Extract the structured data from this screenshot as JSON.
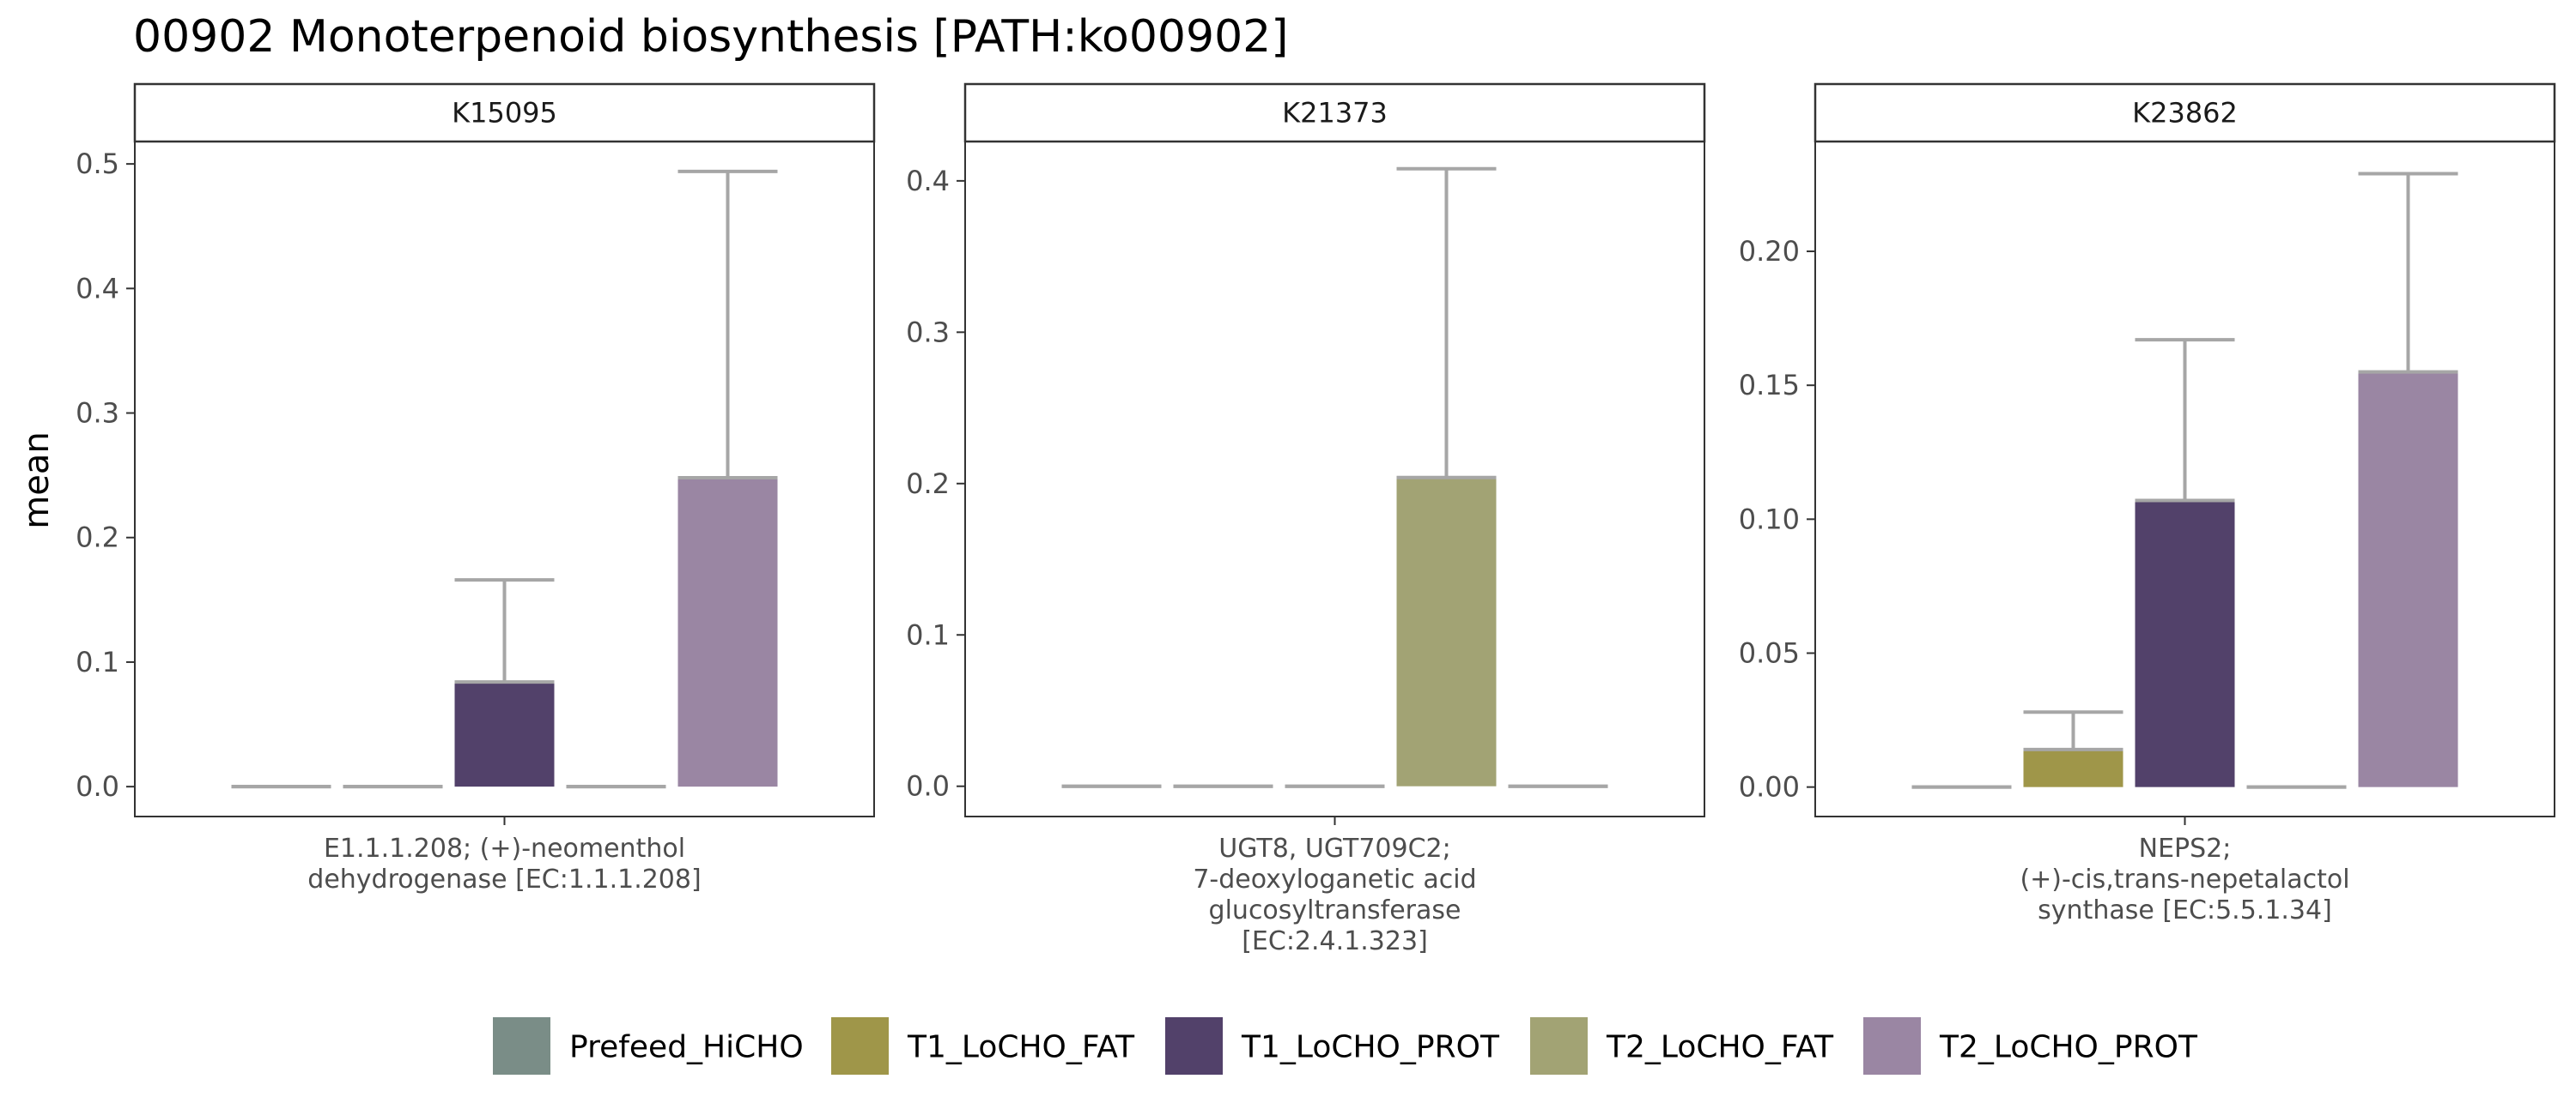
{
  "chart_data": {
    "type": "bar",
    "title": "00902 Monoterpenoid biosynthesis [PATH:ko00902]",
    "ylabel": "mean",
    "groups": [
      "Prefeed_HiCHO",
      "T1_LoCHO_FAT",
      "T1_LoCHO_PROT",
      "T2_LoCHO_FAT",
      "T2_LoCHO_PROT"
    ],
    "colors": {
      "Prefeed_HiCHO": "#7a8d87",
      "T1_LoCHO_FAT": "#9f9649",
      "T1_LoCHO_PROT": "#52416a",
      "T2_LoCHO_FAT": "#a2a374",
      "T2_LoCHO_PROT": "#9a86a3"
    },
    "errorbar_color": "#a6a6a6",
    "legend_position": "bottom",
    "panels": [
      {
        "strip": "K15095",
        "category_lines": [
          "E1.1.1.208; (+)-neomenthol",
          "dehydrogenase [EC:1.1.1.208]"
        ],
        "ylim": [
          -0.024,
          0.518
        ],
        "yticks": [
          0.0,
          0.1,
          0.2,
          0.3,
          0.4,
          0.5
        ],
        "tick_labels": [
          "0.0",
          "0.1",
          "0.2",
          "0.3",
          "0.4",
          "0.5"
        ],
        "series": [
          {
            "name": "Prefeed_HiCHO",
            "value": 0.0,
            "upper": 0.0
          },
          {
            "name": "T1_LoCHO_FAT",
            "value": 0.0,
            "upper": 0.0
          },
          {
            "name": "T1_LoCHO_PROT",
            "value": 0.084,
            "upper": 0.166
          },
          {
            "name": "T2_LoCHO_FAT",
            "value": 0.0,
            "upper": 0.0
          },
          {
            "name": "T2_LoCHO_PROT",
            "value": 0.248,
            "upper": 0.494
          }
        ]
      },
      {
        "strip": "K21373",
        "category_lines": [
          "UGT8, UGT709C2;",
          "7-deoxyloganetic acid",
          "glucosyltransferase",
          "[EC:2.4.1.323]"
        ],
        "ylim": [
          -0.02,
          0.426
        ],
        "yticks": [
          0.0,
          0.1,
          0.2,
          0.3,
          0.4
        ],
        "tick_labels": [
          "0.0",
          "0.1",
          "0.2",
          "0.3",
          "0.4"
        ],
        "series": [
          {
            "name": "Prefeed_HiCHO",
            "value": 0.0,
            "upper": 0.0
          },
          {
            "name": "T1_LoCHO_FAT",
            "value": 0.0,
            "upper": 0.0
          },
          {
            "name": "T1_LoCHO_PROT",
            "value": 0.0,
            "upper": 0.0
          },
          {
            "name": "T2_LoCHO_FAT",
            "value": 0.204,
            "upper": 0.408
          },
          {
            "name": "T2_LoCHO_PROT",
            "value": 0.0,
            "upper": 0.0
          }
        ]
      },
      {
        "strip": "K23862",
        "category_lines": [
          "NEPS2;",
          "(+)-cis,trans-nepetalactol",
          "synthase [EC:5.5.1.34]"
        ],
        "ylim": [
          -0.011,
          0.241
        ],
        "yticks": [
          0.0,
          0.05,
          0.1,
          0.15,
          0.2
        ],
        "tick_labels": [
          "0.00",
          "0.05",
          "0.10",
          "0.15",
          "0.20"
        ],
        "series": [
          {
            "name": "Prefeed_HiCHO",
            "value": 0.0,
            "upper": 0.0
          },
          {
            "name": "T1_LoCHO_FAT",
            "value": 0.014,
            "upper": 0.028
          },
          {
            "name": "T1_LoCHO_PROT",
            "value": 0.107,
            "upper": 0.167
          },
          {
            "name": "T2_LoCHO_FAT",
            "value": 0.0,
            "upper": 0.0
          },
          {
            "name": "T2_LoCHO_PROT",
            "value": 0.155,
            "upper": 0.229
          }
        ]
      }
    ]
  }
}
